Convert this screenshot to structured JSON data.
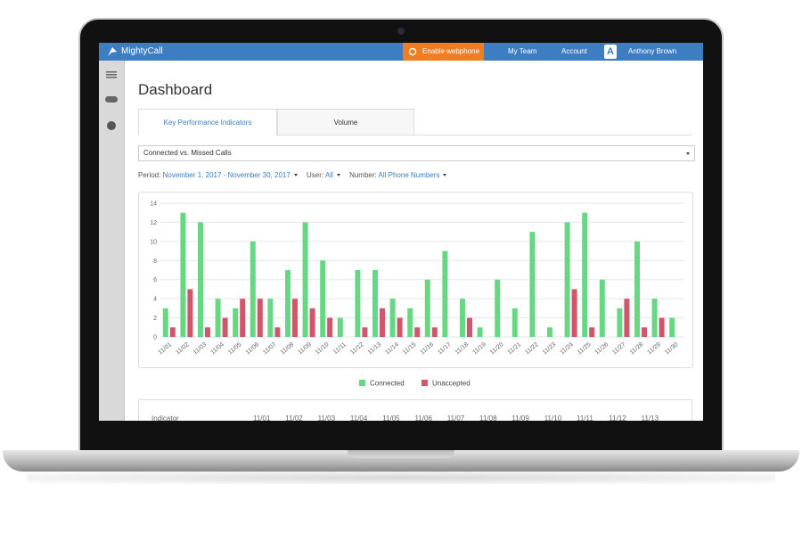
{
  "header": {
    "brand": "MightyCall",
    "webphone": "Enable webphone",
    "team": "My Team",
    "account": "Account",
    "avatar": "A",
    "user": "Anthony Brown"
  },
  "dashboard": {
    "title": "Dashboard",
    "tabs": [
      "Key Performance Indicators",
      "Volume"
    ],
    "selector": "Connected vs. Missed Calls",
    "filters": [
      {
        "label": "Period:",
        "value": "November 1, 2017 - November 30, 2017"
      },
      {
        "label": "User:",
        "value": "All"
      },
      {
        "label": "Number:",
        "value": "All Phone Numbers"
      }
    ]
  },
  "chart_data": {
    "type": "bar",
    "categories": [
      "11/01",
      "11/02",
      "11/03",
      "11/04",
      "11/05",
      "11/06",
      "11/07",
      "11/08",
      "11/09",
      "11/10",
      "11/11",
      "11/12",
      "11/13",
      "11/14",
      "11/15",
      "11/16",
      "11/17",
      "11/18",
      "11/19",
      "11/20",
      "11/21",
      "11/22",
      "11/23",
      "11/24",
      "11/25",
      "11/26",
      "11/27",
      "11/28",
      "11/29",
      "11/30"
    ],
    "series": [
      {
        "name": "Connected",
        "color": "#66d884",
        "values": [
          3,
          13,
          12,
          4,
          3,
          10,
          4,
          7,
          12,
          8,
          2,
          7,
          7,
          4,
          3,
          6,
          9,
          4,
          1,
          6,
          3,
          11,
          1,
          12,
          13,
          6,
          3,
          10,
          4,
          2
        ]
      },
      {
        "name": "Unaccepted",
        "color": "#d2566b",
        "values": [
          1,
          5,
          1,
          2,
          4,
          4,
          1,
          4,
          3,
          2,
          0,
          1,
          3,
          2,
          1,
          1,
          0,
          2,
          0,
          0,
          0,
          0,
          0,
          5,
          1,
          0,
          4,
          1,
          2,
          0
        ]
      }
    ],
    "ylim": [
      0,
      14
    ],
    "yticks": [
      0,
      2,
      4,
      6,
      8,
      10,
      12,
      14
    ],
    "grid": true,
    "legend": "bottom"
  },
  "table": {
    "header": [
      "Indicator",
      "11/01",
      "11/02",
      "11/03",
      "11/04",
      "11/05",
      "11/06",
      "11/07",
      "11/08",
      "11/09",
      "11/10",
      "11/11",
      "11/12",
      "11/13"
    ]
  }
}
